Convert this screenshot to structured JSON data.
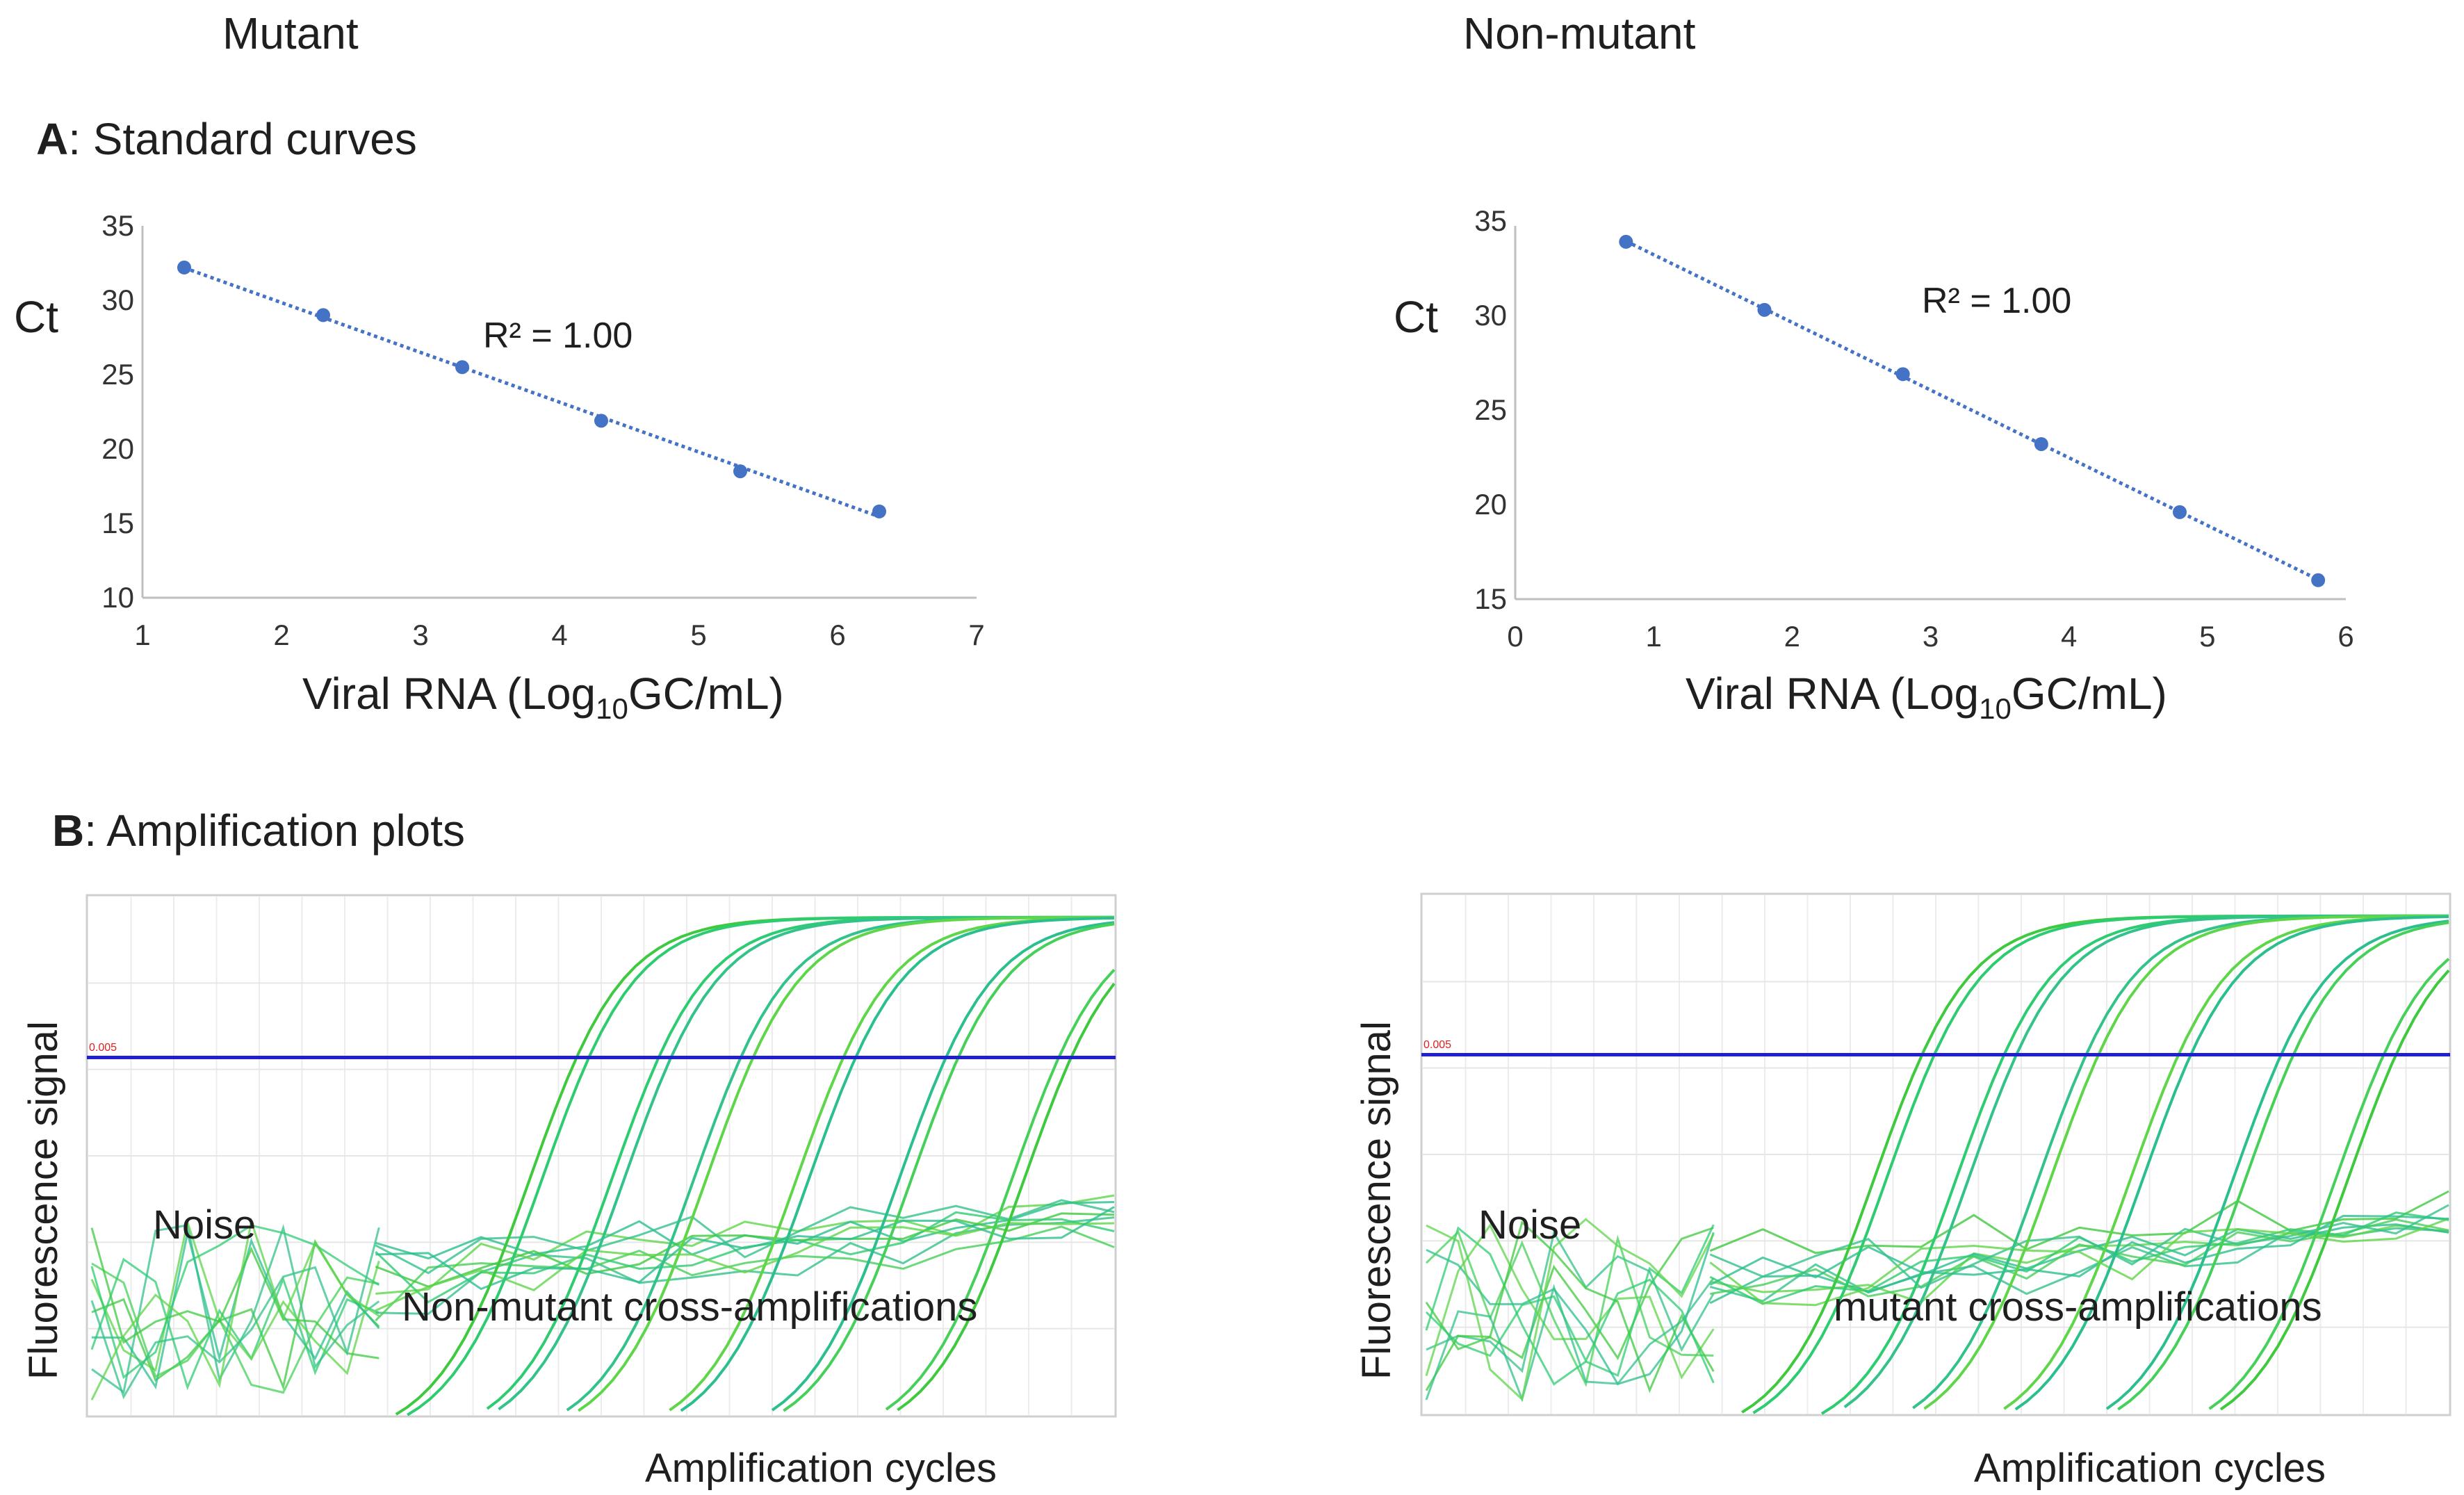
{
  "columns": {
    "left": "Mutant",
    "right": "Non-mutant"
  },
  "sections": {
    "a": {
      "letter": "A",
      "rest": ": Standard curves"
    },
    "b": {
      "letter": "B",
      "rest": ": Amplification plots"
    }
  },
  "chart_data": [
    {
      "id": "std-mutant",
      "type": "scatter",
      "title": "Mutant",
      "xlabel": "Viral RNA (Log10GC/mL)",
      "xlabel_main": "Viral RNA (Log",
      "xlabel_sub": "10",
      "xlabel_tail": "GC/mL)",
      "ylabel": "Ct",
      "xlim": [
        1,
        7
      ],
      "ylim": [
        10,
        35
      ],
      "xticks": [
        1,
        2,
        3,
        4,
        5,
        6,
        7
      ],
      "yticks": [
        10,
        15,
        20,
        25,
        30,
        35
      ],
      "x": [
        1.3,
        2.3,
        3.3,
        4.3,
        5.3,
        6.3
      ],
      "y": [
        32.2,
        29.0,
        25.5,
        21.9,
        18.5,
        15.8
      ],
      "trendline": "linear (dotted)",
      "annotation": "R² = 1.00",
      "color": "#4472c4"
    },
    {
      "id": "std-nonmutant",
      "type": "scatter",
      "title": "Non-mutant",
      "xlabel": "Viral RNA (Log10GC/mL)",
      "xlabel_main": "Viral RNA (Log",
      "xlabel_sub": "10",
      "xlabel_tail": "GC/mL)",
      "ylabel": "Ct",
      "xlim": [
        0,
        6
      ],
      "ylim": [
        15,
        35
      ],
      "xticks": [
        0,
        1,
        2,
        3,
        4,
        5,
        6
      ],
      "yticks": [
        15,
        20,
        25,
        30,
        35
      ],
      "x": [
        0.8,
        1.8,
        2.8,
        3.8,
        4.8,
        5.8
      ],
      "y": [
        33.9,
        30.3,
        26.9,
        23.2,
        19.6,
        16.0
      ],
      "trendline": "linear (dotted)",
      "annotation": "R² = 1.00",
      "color": "#4472c4"
    },
    {
      "id": "amp-mutant",
      "type": "line",
      "xlabel": "Amplification cycles",
      "ylabel": "Fluorescence signal",
      "threshold_label": "0.005",
      "threshold_color": "#2020d0",
      "curve_color": "#2ecc40",
      "sigmoid_midpoints_fraction": [
        0.43,
        0.51,
        0.59,
        0.69,
        0.79,
        0.9
      ],
      "noise_label": "Noise",
      "cross_label": "Non-mutant cross-amplifications"
    },
    {
      "id": "amp-nonmutant",
      "type": "line",
      "xlabel": "Amplification cycles",
      "ylabel": "Fluorescence signal",
      "threshold_label": "0.005",
      "threshold_color": "#2020d0",
      "curve_color": "#2ecc40",
      "sigmoid_midpoints_fraction": [
        0.44,
        0.52,
        0.6,
        0.69,
        0.79,
        0.89
      ],
      "noise_label": "Noise",
      "cross_label": "mutant cross-amplifications"
    }
  ]
}
